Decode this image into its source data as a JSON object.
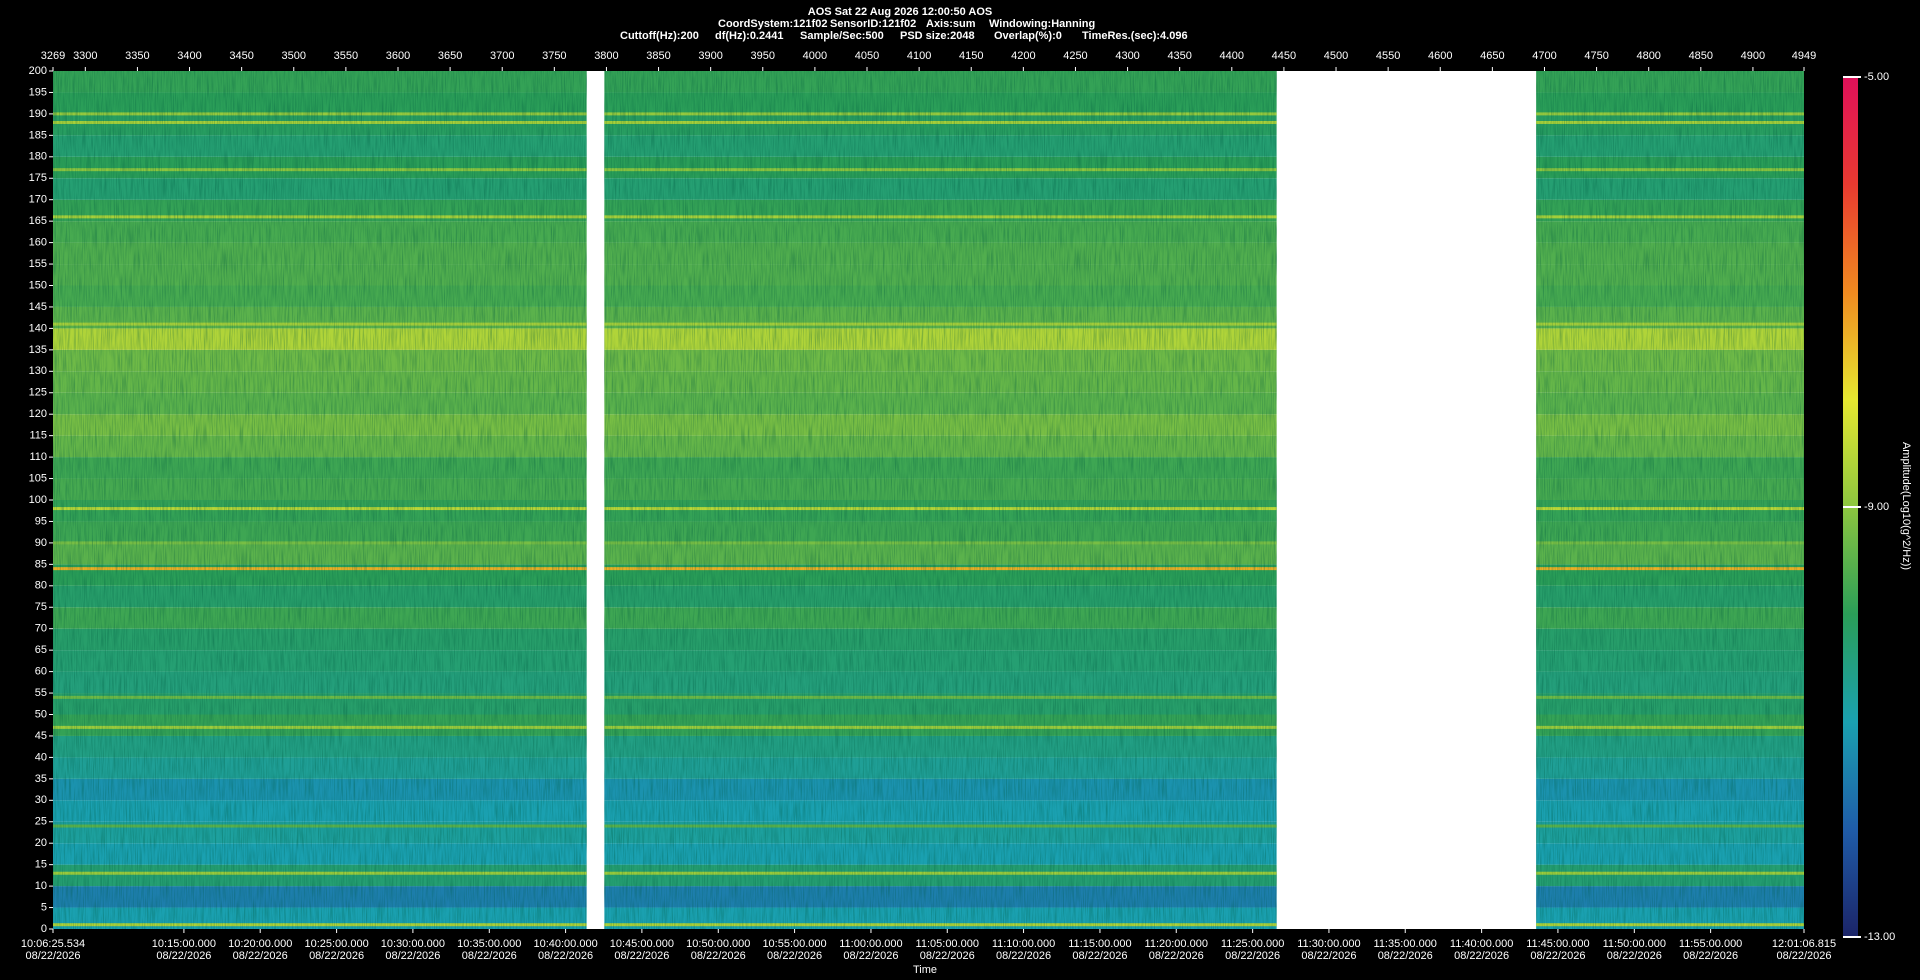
{
  "header": {
    "title": "AOS  Sat 22 Aug 2026 12:00:50  AOS",
    "info_line1": [
      "CoordSystem:121f02",
      "SensorID:121f02",
      "Axis:sum",
      "Windowing:Hanning"
    ],
    "info_line2": [
      "Cuttoff(Hz):200",
      "df(Hz):0.2441",
      "Sample/Sec:500",
      "PSD size:2048",
      "Overlap(%):0",
      "TimeRes.(sec):4.096"
    ]
  },
  "chart_data": {
    "type": "spectrogram",
    "x_label": "Time",
    "colorbar_label": "Amplitude(Log10(g^2/Hz))",
    "xlim": [
      3269,
      4949
    ],
    "xticks": [
      3269,
      3300,
      3350,
      3400,
      3450,
      3500,
      3550,
      3600,
      3650,
      3700,
      3750,
      3800,
      3850,
      3900,
      3950,
      4000,
      4050,
      4100,
      4150,
      4200,
      4250,
      4300,
      4350,
      4400,
      4450,
      4500,
      4550,
      4600,
      4650,
      4700,
      4750,
      4800,
      4850,
      4900,
      4949
    ],
    "xticks_time": [
      {
        "value": 3269,
        "label": "10:06:25.534",
        "date": "08/22/2026"
      },
      {
        "value": 3394.6,
        "label": "10:15:00.000",
        "date": "08/22/2026"
      },
      {
        "value": 3467.8,
        "label": "10:20:00.000",
        "date": "08/22/2026"
      },
      {
        "value": 3541.1,
        "label": "10:25:00.000",
        "date": "08/22/2026"
      },
      {
        "value": 3614.3,
        "label": "10:30:00.000",
        "date": "08/22/2026"
      },
      {
        "value": 3687.6,
        "label": "10:35:00.000",
        "date": "08/22/2026"
      },
      {
        "value": 3760.8,
        "label": "10:40:00.000",
        "date": "08/22/2026"
      },
      {
        "value": 3834.0,
        "label": "10:45:00.000",
        "date": "08/22/2026"
      },
      {
        "value": 3907.3,
        "label": "10:50:00.000",
        "date": "08/22/2026"
      },
      {
        "value": 3980.5,
        "label": "10:55:00.000",
        "date": "08/22/2026"
      },
      {
        "value": 4053.8,
        "label": "11:00:00.000",
        "date": "08/22/2026"
      },
      {
        "value": 4127.0,
        "label": "11:05:00.000",
        "date": "08/22/2026"
      },
      {
        "value": 4200.2,
        "label": "11:10:00.000",
        "date": "08/22/2026"
      },
      {
        "value": 4273.5,
        "label": "11:15:00.000",
        "date": "08/22/2026"
      },
      {
        "value": 4346.7,
        "label": "11:20:00.000",
        "date": "08/22/2026"
      },
      {
        "value": 4420.0,
        "label": "11:25:00.000",
        "date": "08/22/2026"
      },
      {
        "value": 4493.2,
        "label": "11:30:00.000",
        "date": "08/22/2026"
      },
      {
        "value": 4566.4,
        "label": "11:35:00.000",
        "date": "08/22/2026"
      },
      {
        "value": 4639.7,
        "label": "11:40:00.000",
        "date": "08/22/2026"
      },
      {
        "value": 4712.9,
        "label": "11:45:00.000",
        "date": "08/22/2026"
      },
      {
        "value": 4786.2,
        "label": "11:50:00.000",
        "date": "08/22/2026"
      },
      {
        "value": 4859.4,
        "label": "11:55:00.000",
        "date": "08/22/2026"
      },
      {
        "value": 4949,
        "label": "12:01:06.815",
        "date": "08/22/2026"
      }
    ],
    "ylim": [
      0,
      200
    ],
    "yticks": [
      0,
      5,
      10,
      15,
      20,
      25,
      30,
      35,
      40,
      45,
      50,
      55,
      60,
      65,
      70,
      75,
      80,
      85,
      90,
      95,
      100,
      105,
      110,
      115,
      120,
      125,
      130,
      135,
      140,
      145,
      150,
      155,
      160,
      165,
      170,
      175,
      180,
      185,
      190,
      195,
      200
    ],
    "segments": [
      [
        3269,
        3781
      ],
      [
        3798,
        4443
      ],
      [
        4692,
        4949
      ]
    ],
    "bands": {
      "edges": [
        0,
        5,
        10,
        15,
        20,
        25,
        30,
        35,
        40,
        45,
        50,
        55,
        60,
        65,
        70,
        75,
        80,
        85,
        90,
        95,
        100,
        105,
        110,
        115,
        120,
        125,
        130,
        135,
        140,
        145,
        150,
        155,
        160,
        165,
        170,
        175,
        180,
        185,
        190,
        195,
        200
      ],
      "values": [
        -11.0,
        -11.5,
        -10.3,
        -11.0,
        -10.8,
        -11.0,
        -11.2,
        -10.7,
        -10.5,
        -9.9,
        -10.2,
        -10.4,
        -10.3,
        -10.2,
        -9.8,
        -10.2,
        -10.0,
        -9.5,
        -9.8,
        -9.9,
        -9.7,
        -9.8,
        -9.4,
        -9.2,
        -9.5,
        -9.4,
        -9.3,
        -8.6,
        -9.5,
        -9.7,
        -9.6,
        -9.6,
        -9.7,
        -9.9,
        -10.3,
        -10.0,
        -10.3,
        -10.1,
        -10.0,
        -9.9
      ]
    },
    "lines": {
      "freqs": [
        1,
        13,
        24,
        47,
        54,
        84,
        90,
        98,
        141,
        166,
        177,
        188,
        190
      ],
      "values": [
        -8.6,
        -8.8,
        -9.5,
        -8.8,
        -9.3,
        -7.4,
        -9.2,
        -8.5,
        -8.7,
        -8.7,
        -9.0,
        -8.7,
        -8.9
      ]
    },
    "clim": [
      -13,
      -5
    ],
    "cticks": [
      {
        "value": -13,
        "label": "-13.00"
      },
      {
        "value": -9,
        "label": "-9.00"
      },
      {
        "value": -5,
        "label": "-5.00"
      }
    ],
    "colormap": [
      "#1b2468",
      "#1f5ca8",
      "#1aa0b0",
      "#2a9e58",
      "#8cc63f",
      "#e6e830",
      "#f08a20",
      "#e83a30",
      "#e0105a"
    ]
  }
}
